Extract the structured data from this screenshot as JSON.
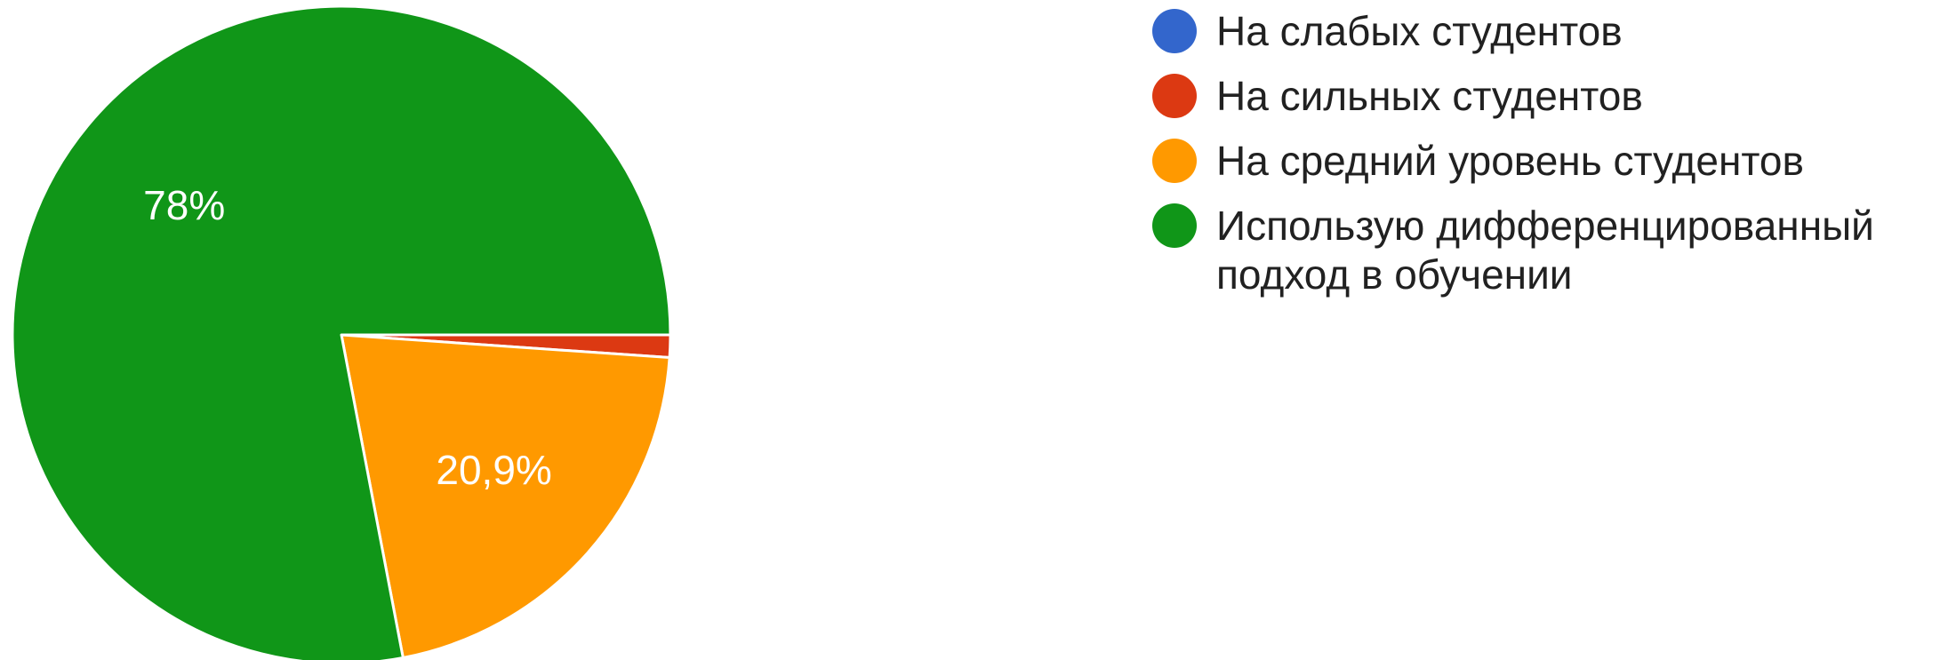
{
  "chart_data": {
    "type": "pie",
    "title": "",
    "legend_position": "right",
    "slices": [
      {
        "label": "На слабых студентов",
        "value": 0,
        "value_label": "",
        "color": "#3366cc"
      },
      {
        "label": "На сильных студентов",
        "value": 1.1,
        "value_label": "",
        "color": "#dc3912"
      },
      {
        "label": "На средний уровень студентов",
        "value": 20.9,
        "value_label": "20,9%",
        "color": "#ff9900"
      },
      {
        "label": "Использую дифференцированный подход в обучении",
        "value": 78,
        "value_label": "78%",
        "color": "#109618"
      }
    ]
  }
}
